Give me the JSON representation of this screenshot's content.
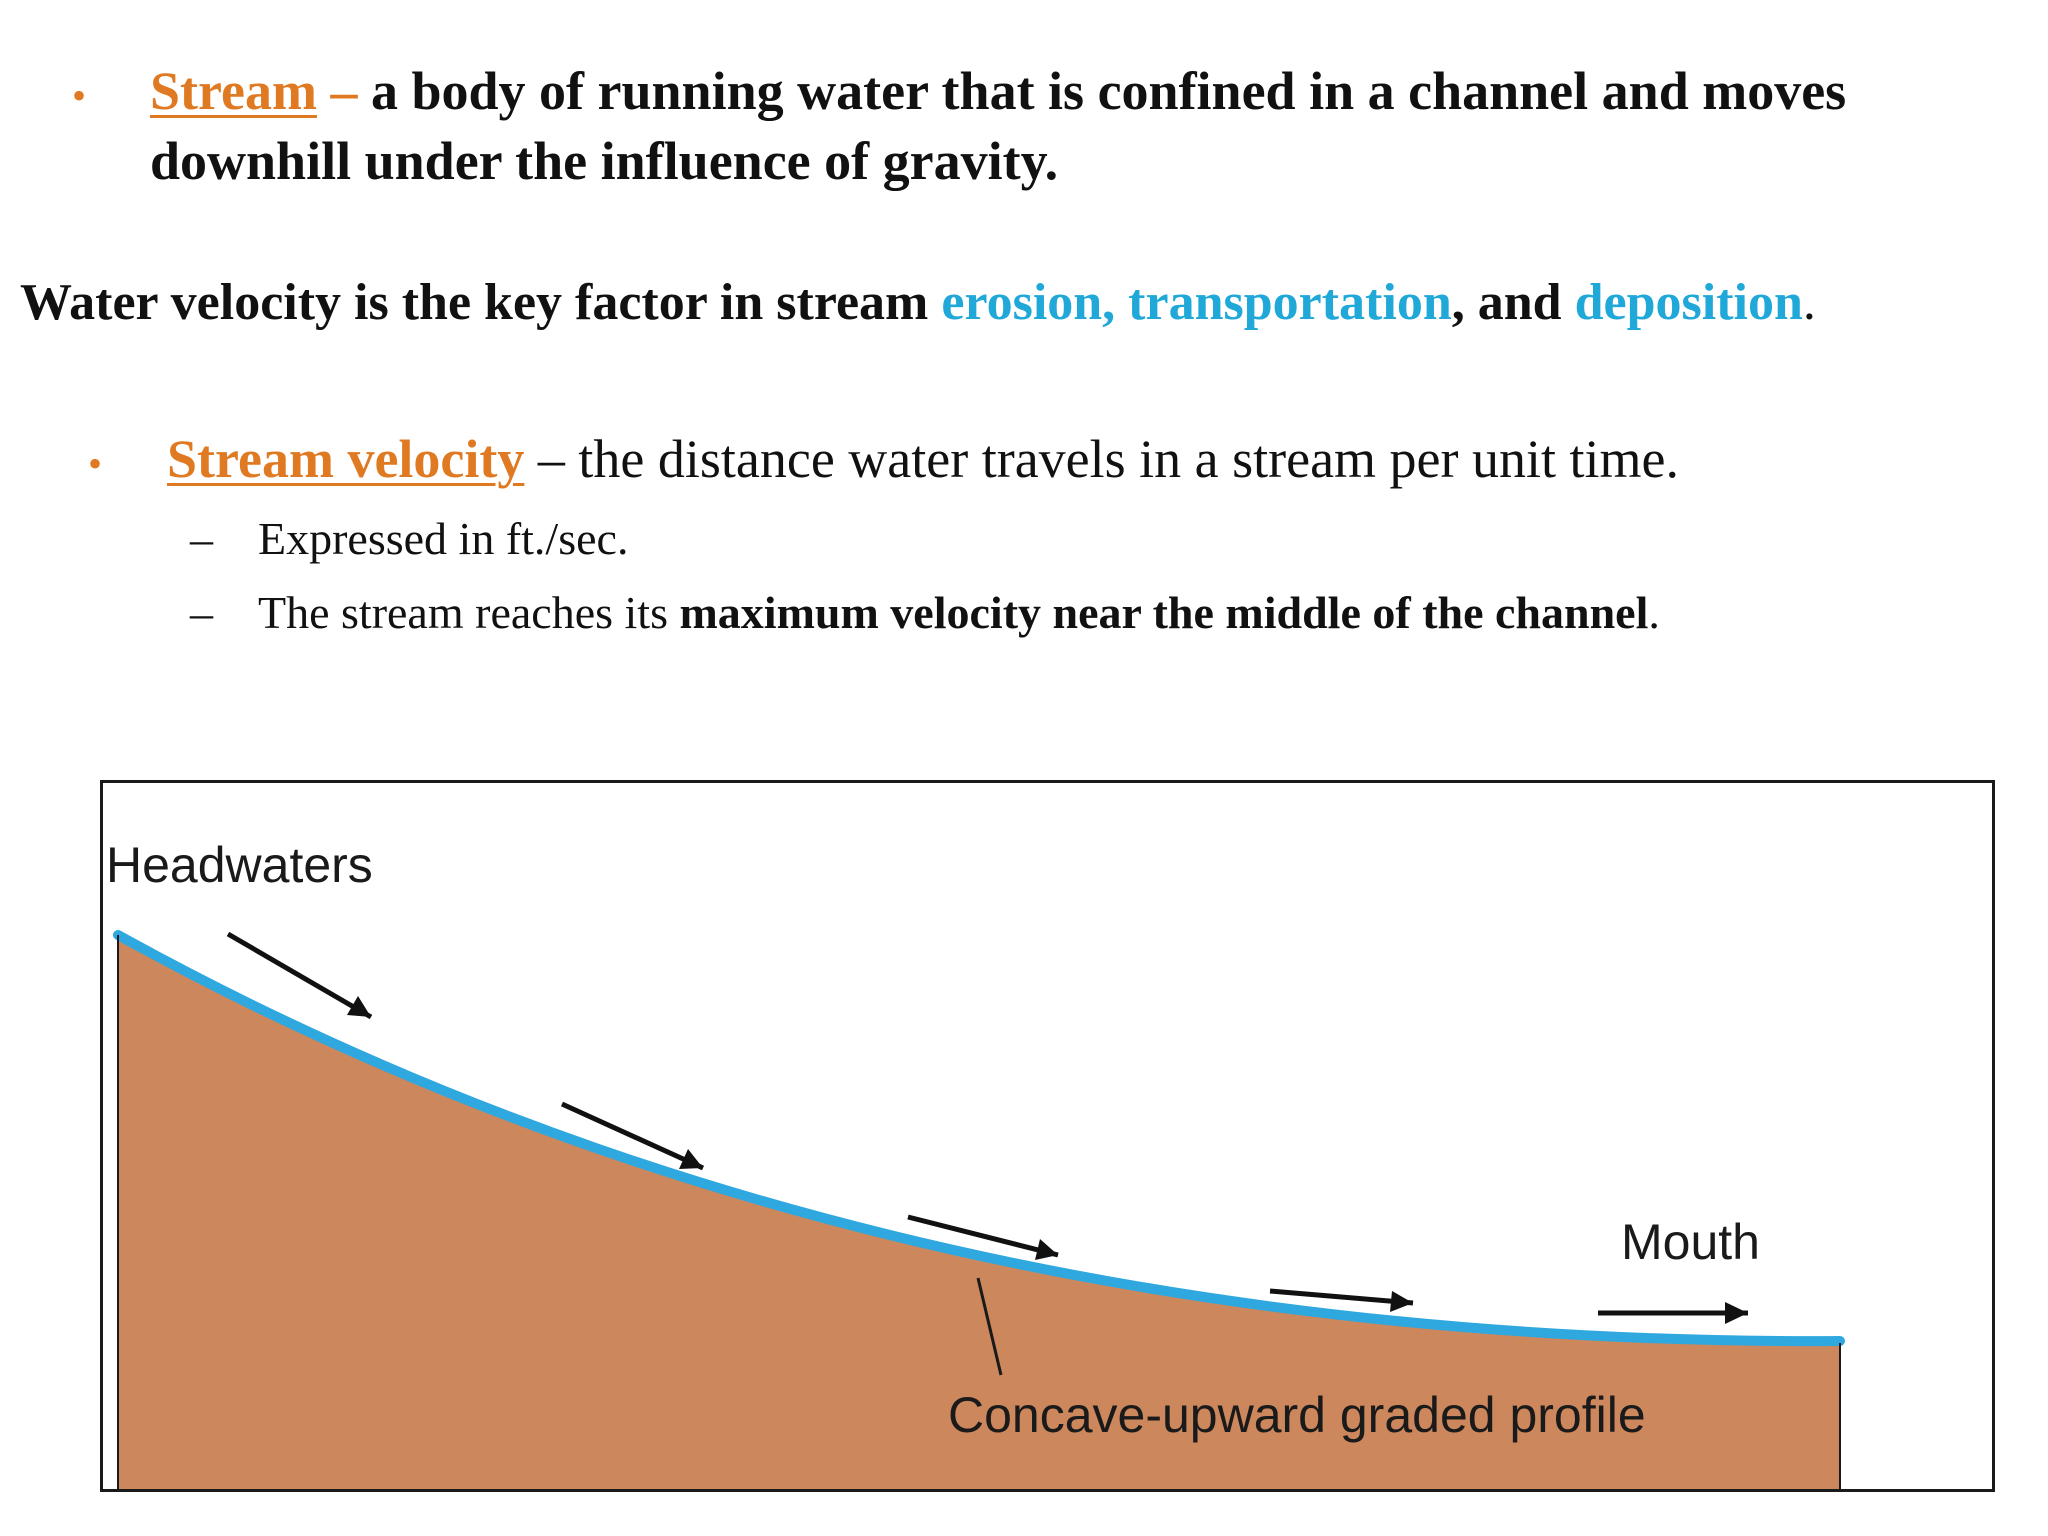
{
  "bullet_char": "•",
  "dash_char": "–",
  "definition": {
    "term": "Stream",
    "dash": " – ",
    "line1_rest": "a body of running water that is confined in a channel and moves",
    "line2": "downhill under the influence of gravity."
  },
  "key_statement": {
    "part1": "Water velocity is the key factor in stream ",
    "term1": "erosion, transportation",
    "part2": ", and ",
    "term2": "deposition",
    "end": "."
  },
  "velocity": {
    "term": "Stream velocity",
    "rest": " – the distance water travels in a stream per unit time.",
    "sub1": "Expressed in ft./sec.",
    "sub2_start": "The stream reaches its ",
    "sub2_bold": "maximum velocity near the middle of the channel",
    "sub2_end": "."
  },
  "diagram": {
    "headwaters_label": "Headwaters",
    "mouth_label": "Mouth",
    "profile_label": "Concave-upward graded profile",
    "colors": {
      "land": "#cc875c",
      "water": "#2fa8df",
      "arrow": "#111111",
      "orange_accent": "#e07a22",
      "blue_accent": "#1fa8d8"
    }
  }
}
